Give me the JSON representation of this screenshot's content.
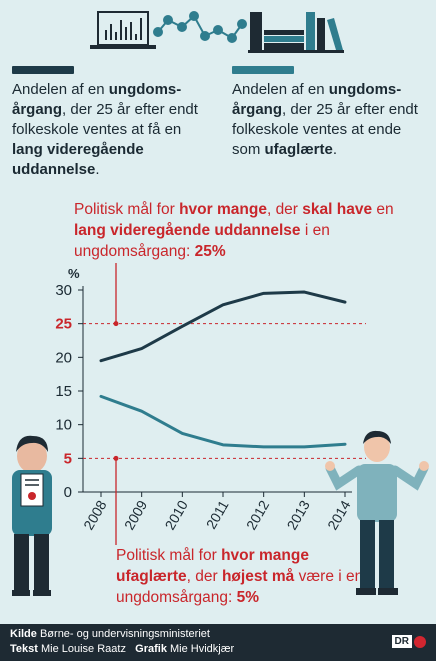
{
  "legend": {
    "dark": {
      "color": "#1e3a48",
      "text_parts": [
        "Andelen af en ",
        "ungdoms­årgang",
        ", der 25 år efter endt folkeskole ventes at få en ",
        "lang videregående uddannelse",
        "."
      ]
    },
    "light": {
      "color": "#2f7d8e",
      "text_parts": [
        "Andelen af en ",
        "ungdoms­årgang",
        ", der 25 år efter endt folkeskole ventes at ende som ",
        "ufaglærte",
        "."
      ]
    }
  },
  "goal_top": {
    "text_parts": [
      "Politisk mål for ",
      "hvor mange",
      ", der ",
      "skal have",
      " en ",
      "lang videregående uddannelse",
      " i en ungdomsårgang: ",
      "25%"
    ]
  },
  "goal_bottom": {
    "text_parts": [
      "Politisk mål for ",
      "hvor mange ufaglærte",
      ", der ",
      "højest må",
      " være i en ungdoms­årgang: ",
      "5%"
    ]
  },
  "footer": {
    "source_label": "Kilde",
    "source": "Børne- og undervisningsministeriet",
    "text_label": "Tekst",
    "text_author": "Mie Louise Raatz",
    "graphic_label": "Grafik",
    "graphic_author": "Mie Hvidkjær",
    "logo": "DR"
  },
  "colors": {
    "background": "#dfeef0",
    "dark_series": "#1e3a48",
    "light_series": "#2f7d8e",
    "goal": "#c9262b",
    "axis": "#1b2a33"
  },
  "chart_data": {
    "type": "line",
    "ylabel": "%",
    "x": [
      "2008",
      "2009",
      "2010",
      "2011",
      "2012",
      "2013",
      "2014"
    ],
    "yticks": [
      0,
      5,
      10,
      15,
      20,
      25,
      30
    ],
    "ylim": [
      0,
      30
    ],
    "highlight_ticks": [
      5,
      25
    ],
    "series": [
      {
        "key": "dark",
        "values": [
          19.5,
          21.3,
          24.6,
          27.8,
          29.5,
          29.7,
          28.2
        ]
      },
      {
        "key": "light",
        "values": [
          14.2,
          12.0,
          8.7,
          7.0,
          6.7,
          6.7,
          7.1
        ]
      }
    ],
    "reference_lines": [
      25,
      5
    ],
    "grid": false
  }
}
